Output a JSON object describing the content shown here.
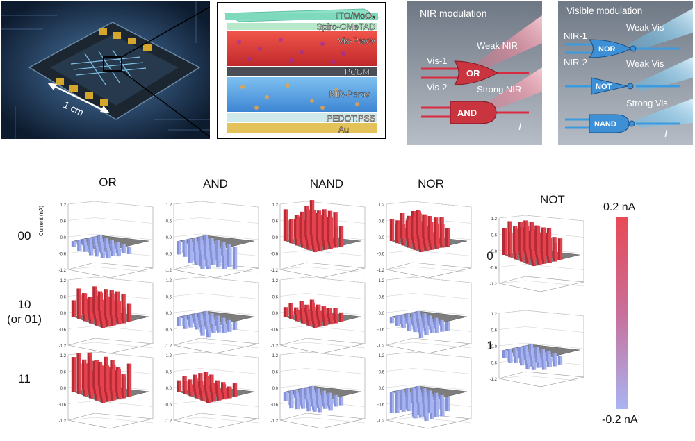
{
  "top": {
    "chip": {
      "scale_label": "1 cm"
    },
    "stack": {
      "layers": [
        "ITO/MoO₃",
        "Spiro-OMeTAD",
        "Vis-Perov",
        "PCBM",
        "NIR-Perov",
        "PEDOT:PSS",
        "Au"
      ]
    },
    "nir": {
      "title": "NIR modulation",
      "input1": "Vis-1",
      "input2": "Vis-2",
      "weak": "Weak NIR",
      "strong": "Strong NIR",
      "gate1": "OR",
      "gate2": "AND",
      "current": "I"
    },
    "vis": {
      "title": "Visible modulation",
      "input1": "NIR-1",
      "input2": "NIR-2",
      "weak1": "Weak Vis",
      "weak2": "Weak Vis",
      "strong": "Strong Vis",
      "gate1": "NOR",
      "gate2": "NOT",
      "gate3": "NAND",
      "current": "I"
    }
  },
  "grid": {
    "columns": [
      "OR",
      "AND",
      "NAND",
      "NOR"
    ],
    "not_column": "NOT",
    "rows": [
      "00",
      "10\n(or 01)",
      "11"
    ],
    "not_rows": [
      "0",
      "1"
    ],
    "z_axis_label": "Current (nA)",
    "z_ticks": [
      "1.2",
      "0.6",
      "0.0",
      "-0.6",
      "-1.2"
    ],
    "colorbar": {
      "max_label": "0.2 nA",
      "min_label": "-0.2 nA",
      "high_color": "#e84a55",
      "low_color": "#a9b4f2"
    }
  },
  "chart_data": {
    "type": "bar3d",
    "zlim": [
      -1.2,
      1.2
    ],
    "matrix": "6x6 device array",
    "plots": [
      {
        "name": "OR-00",
        "sign": -1,
        "level": 0.2
      },
      {
        "name": "AND-00",
        "sign": -1,
        "level": 0.55
      },
      {
        "name": "NAND-00",
        "sign": 1,
        "level": 0.85
      },
      {
        "name": "NOR-00",
        "sign": 1,
        "level": 0.7
      },
      {
        "name": "OR-10",
        "sign": 1,
        "level": 0.65
      },
      {
        "name": "AND-10",
        "sign": -1,
        "level": 0.25
      },
      {
        "name": "NAND-10",
        "sign": 1,
        "level": 0.3
      },
      {
        "name": "NOR-10",
        "sign": -1,
        "level": 0.25
      },
      {
        "name": "OR-11",
        "sign": 1,
        "level": 0.9
      },
      {
        "name": "AND-11",
        "sign": 1,
        "level": 0.35
      },
      {
        "name": "NAND-11",
        "sign": -1,
        "level": 0.35
      },
      {
        "name": "NOR-11",
        "sign": -1,
        "level": 0.55
      },
      {
        "name": "NOT-0",
        "sign": 1,
        "level": 0.8
      },
      {
        "name": "NOT-1",
        "sign": -1,
        "level": 0.3
      }
    ]
  }
}
